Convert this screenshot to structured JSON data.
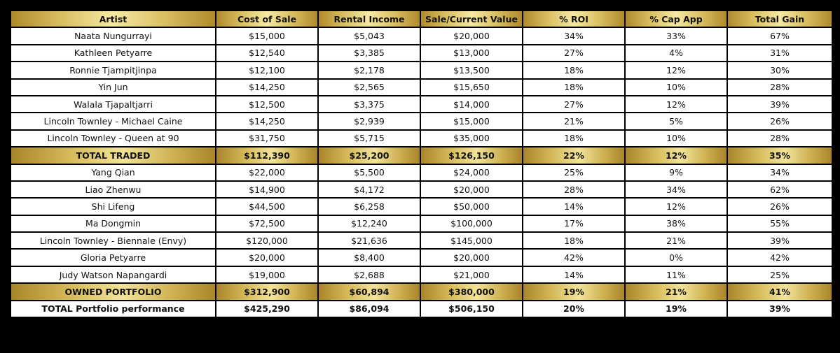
{
  "table": {
    "header": [
      "Artist",
      "Cost of Sale",
      "Rental Income",
      "Sale/Current Value",
      "% ROI",
      "% Cap App",
      "Total Gain"
    ],
    "rows": [
      [
        "Naata Nungurrayi",
        "$15,000",
        "$5,043",
        "$20,000",
        "34%",
        "33%",
        "67%"
      ],
      [
        "Kathleen Petyarre",
        "$12,540",
        "$3,385",
        "$13,000",
        "27%",
        "4%",
        "31%"
      ],
      [
        "Ronnie Tjampitjinpa",
        "$12,100",
        "$2,178",
        "$13,500",
        "18%",
        "12%",
        "30%"
      ],
      [
        "Yin Jun",
        "$14,250",
        "$2,565",
        "$15,650",
        "18%",
        "10%",
        "28%"
      ],
      [
        "Walala Tjapaltjarri",
        "$12,500",
        "$3,375",
        "$14,000",
        "27%",
        "12%",
        "39%"
      ],
      [
        "Lincoln Townley - Michael Caine",
        "$14,250",
        "$2,939",
        "$15,000",
        "21%",
        "5%",
        "26%"
      ],
      [
        "Lincoln Townley - Queen at 90",
        "$31,750",
        "$5,715",
        "$35,000",
        "18%",
        "10%",
        "28%"
      ],
      [
        "TOTAL TRADED",
        "$112,390",
        "$25,200",
        "$126,150",
        "22%",
        "12%",
        "35%"
      ],
      [
        "Yang Qian",
        "$22,000",
        "$5,500",
        "$24,000",
        "25%",
        "9%",
        "34%"
      ],
      [
        "Liao Zhenwu",
        "$14,900",
        "$4,172",
        "$20,000",
        "28%",
        "34%",
        "62%"
      ],
      [
        "Shi Lifeng",
        "$44,500",
        "$6,258",
        "$50,000",
        "14%",
        "12%",
        "26%"
      ],
      [
        "Ma Dongmin",
        "$72,500",
        "$12,240",
        "$100,000",
        "17%",
        "38%",
        "55%"
      ],
      [
        "Lincoln Townley - Biennale (Envy)",
        "$120,000",
        "$21,636",
        "$145,000",
        "18%",
        "21%",
        "39%"
      ],
      [
        "Gloria Petyarre",
        "$20,000",
        "$8,400",
        "$20,000",
        "42%",
        "0%",
        "42%"
      ],
      [
        "Judy Watson Napangardi",
        "$19,000",
        "$2,688",
        "$21,000",
        "14%",
        "11%",
        "25%"
      ],
      [
        "OWNED PORTFOLIO",
        "$312,900",
        "$60,894",
        "$380,000",
        "19%",
        "21%",
        "41%"
      ],
      [
        "TOTAL Portfolio performance",
        "$425,290",
        "$86,094",
        "$506,150",
        "20%",
        "19%",
        "39%"
      ]
    ]
  }
}
